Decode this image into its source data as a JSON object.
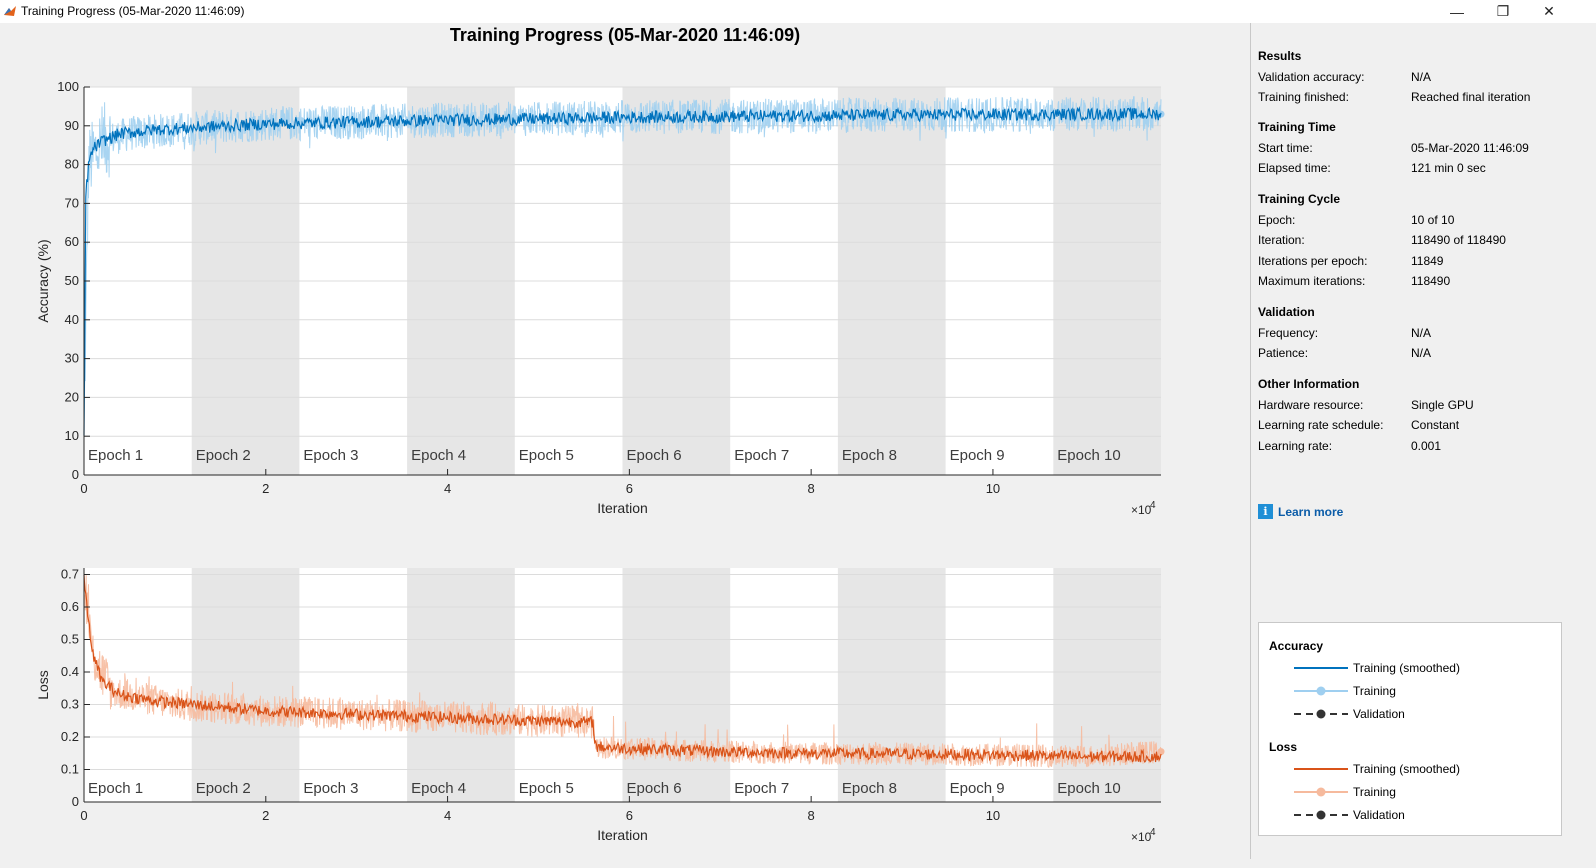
{
  "window": {
    "title": "Training Progress (05-Mar-2020 11:46:09)",
    "controls": {
      "minimize": "—",
      "restore": "❐",
      "close": "✕"
    }
  },
  "plot_title": "Training Progress (05-Mar-2020 11:46:09)",
  "chart_data": [
    {
      "type": "line",
      "title": "",
      "xlabel": "Iteration",
      "ylabel": "Accuracy (%)",
      "xlim": [
        0,
        118490
      ],
      "ylim": [
        0,
        100
      ],
      "x_ticks": [
        0,
        20000,
        40000,
        60000,
        80000,
        100000
      ],
      "x_tick_labels": [
        "0",
        "2",
        "4",
        "6",
        "8",
        "10"
      ],
      "x_exponent_label": "×10",
      "x_exponent_power": "4",
      "y_ticks": [
        0,
        10,
        20,
        30,
        40,
        50,
        60,
        70,
        80,
        90,
        100
      ],
      "y_tick_labels": [
        "0",
        "10",
        "20",
        "30",
        "40",
        "50",
        "60",
        "70",
        "80",
        "90",
        "100"
      ],
      "epoch_labels": [
        "Epoch 1",
        "Epoch 2",
        "Epoch 3",
        "Epoch 4",
        "Epoch 5",
        "Epoch 6",
        "Epoch 7",
        "Epoch 8",
        "Epoch 9",
        "Epoch 10"
      ],
      "iterations_per_epoch": 11849,
      "grid": true,
      "series": [
        {
          "name": "Training (smoothed)",
          "color": "#0072bd",
          "x": [
            0,
            200,
            500,
            1000,
            2000,
            4000,
            8000,
            12000,
            20000,
            30000,
            40000,
            50000,
            60000,
            70000,
            80000,
            90000,
            100000,
            110000,
            118490
          ],
          "y": [
            10,
            72,
            80,
            84,
            86,
            88,
            89,
            89.5,
            90.5,
            91,
            91.5,
            91.8,
            92.2,
            92.4,
            92.6,
            92.8,
            92.9,
            93,
            93
          ]
        },
        {
          "name": "Training",
          "color": "#9fcff0",
          "x": [
            0,
            500,
            2000,
            5000,
            10000,
            20000,
            30000,
            40000,
            50000,
            60000,
            70000,
            80000,
            90000,
            100000,
            110000,
            118490
          ],
          "y": [
            10,
            80,
            86,
            88,
            89,
            90.5,
            91,
            91.5,
            91.8,
            92.2,
            92.4,
            92.6,
            92.8,
            92.9,
            93,
            93
          ]
        }
      ]
    },
    {
      "type": "line",
      "title": "",
      "xlabel": "Iteration",
      "ylabel": "Loss",
      "xlim": [
        0,
        118490
      ],
      "ylim": [
        0,
        0.72
      ],
      "x_ticks": [
        0,
        20000,
        40000,
        60000,
        80000,
        100000
      ],
      "x_tick_labels": [
        "0",
        "2",
        "4",
        "6",
        "8",
        "10"
      ],
      "x_exponent_label": "×10",
      "x_exponent_power": "4",
      "y_ticks": [
        0,
        0.1,
        0.2,
        0.3,
        0.4,
        0.5,
        0.6,
        0.7
      ],
      "y_tick_labels": [
        "0",
        "0.1",
        "0.2",
        "0.3",
        "0.4",
        "0.5",
        "0.6",
        "0.7"
      ],
      "epoch_labels": [
        "Epoch 1",
        "Epoch 2",
        "Epoch 3",
        "Epoch 4",
        "Epoch 5",
        "Epoch 6",
        "Epoch 7",
        "Epoch 8",
        "Epoch 9",
        "Epoch 10"
      ],
      "iterations_per_epoch": 11849,
      "grid": true,
      "series": [
        {
          "name": "Training (smoothed)",
          "color": "#d95319",
          "x": [
            0,
            300,
            1000,
            2000,
            4000,
            8000,
            12000,
            20000,
            30000,
            40000,
            50000,
            56000,
            56300,
            60000,
            70000,
            80000,
            90000,
            100000,
            110000,
            118490
          ],
          "y": [
            0.7,
            0.6,
            0.45,
            0.37,
            0.33,
            0.31,
            0.3,
            0.28,
            0.27,
            0.26,
            0.25,
            0.245,
            0.17,
            0.165,
            0.155,
            0.15,
            0.148,
            0.145,
            0.14,
            0.14
          ]
        },
        {
          "name": "Training",
          "color": "#f6ba9d",
          "x": [
            0,
            1000,
            3000,
            10000,
            20000,
            30000,
            40000,
            50000,
            56000,
            56300,
            60000,
            70000,
            80000,
            90000,
            100000,
            110000,
            118490
          ],
          "y": [
            0.7,
            0.45,
            0.34,
            0.3,
            0.28,
            0.27,
            0.26,
            0.25,
            0.245,
            0.17,
            0.165,
            0.155,
            0.15,
            0.148,
            0.145,
            0.14,
            0.155
          ]
        }
      ]
    }
  ],
  "sidebar": {
    "sections": [
      {
        "heading": "Results",
        "rows": [
          {
            "label": "Validation accuracy:",
            "value": "N/A"
          },
          {
            "label": "Training finished:",
            "value": "Reached final iteration"
          }
        ]
      },
      {
        "heading": "Training Time",
        "rows": [
          {
            "label": "Start time:",
            "value": "05-Mar-2020 11:46:09"
          },
          {
            "label": "Elapsed time:",
            "value": "121 min 0 sec"
          }
        ]
      },
      {
        "heading": "Training Cycle",
        "rows": [
          {
            "label": "Epoch:",
            "value": "10 of 10"
          },
          {
            "label": "Iteration:",
            "value": "118490 of 118490"
          },
          {
            "label": "Iterations per epoch:",
            "value": "11849"
          },
          {
            "label": "Maximum iterations:",
            "value": "118490"
          }
        ]
      },
      {
        "heading": "Validation",
        "rows": [
          {
            "label": "Frequency:",
            "value": "N/A"
          },
          {
            "label": "Patience:",
            "value": "N/A"
          }
        ]
      },
      {
        "heading": "Other Information",
        "rows": [
          {
            "label": "Hardware resource:",
            "value": "Single GPU"
          },
          {
            "label": "Learning rate schedule:",
            "value": "Constant"
          },
          {
            "label": "Learning rate:",
            "value": "0.001"
          }
        ]
      }
    ],
    "learn_more": "Learn more",
    "learn_more_icon": "info-icon"
  },
  "legend": {
    "groups": [
      {
        "heading": "Accuracy",
        "items": [
          {
            "label": "Training (smoothed)",
            "style": "solid",
            "color": "#0072bd"
          },
          {
            "label": "Training",
            "style": "marker",
            "color": "#9fcff0"
          },
          {
            "label": "Validation",
            "style": "dashed-marker",
            "color": "#333333"
          }
        ]
      },
      {
        "heading": "Loss",
        "items": [
          {
            "label": "Training (smoothed)",
            "style": "solid",
            "color": "#d95319"
          },
          {
            "label": "Training",
            "style": "marker",
            "color": "#f6ba9d"
          },
          {
            "label": "Validation",
            "style": "dashed-marker",
            "color": "#333333"
          }
        ]
      }
    ]
  }
}
